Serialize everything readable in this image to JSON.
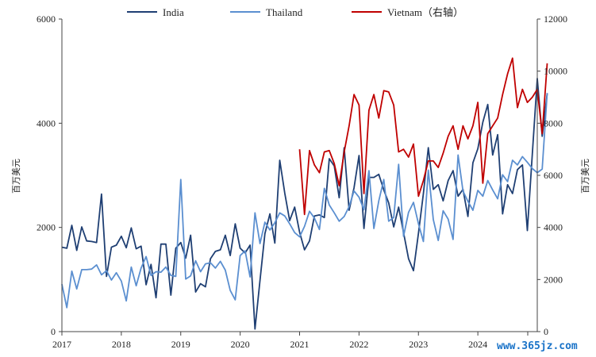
{
  "chart_data": {
    "type": "line",
    "x_ticks": [
      "2017",
      "2018",
      "2019",
      "2020",
      "2021",
      "2022",
      "2023",
      "2024"
    ],
    "y_left": {
      "label": "百万美元",
      "ticks": [
        "0",
        "2000",
        "4000",
        "6000"
      ],
      "range": [
        0,
        6000
      ]
    },
    "y_right": {
      "label": "百万美元",
      "ticks": [
        "0",
        "2000",
        "4000",
        "6000",
        "8000",
        "10000",
        "12000"
      ],
      "range": [
        0,
        12000
      ]
    },
    "x_range": [
      "2017-01",
      "2024-12"
    ],
    "colors": {
      "India": "#1f3f73",
      "Thailand": "#5b8fd0",
      "Vietnam": "#c00000"
    },
    "series": [
      {
        "name": "India",
        "axis": "left",
        "start": "2017-01",
        "values": [
          1620,
          1600,
          2040,
          1560,
          2010,
          1740,
          1730,
          1710,
          2640,
          1060,
          1620,
          1660,
          1830,
          1610,
          1990,
          1590,
          1640,
          900,
          1290,
          650,
          1680,
          1680,
          700,
          1600,
          1710,
          1410,
          1850,
          760,
          920,
          860,
          1400,
          1540,
          1570,
          1850,
          1460,
          2070,
          1600,
          1510,
          1660,
          50,
          980,
          1880,
          2260,
          1700,
          3290,
          2660,
          2130,
          2390,
          1910,
          1570,
          1740,
          2220,
          2240,
          2190,
          3320,
          3180,
          2570,
          3530,
          2330,
          2760,
          3380,
          1980,
          2960,
          2960,
          3020,
          2720,
          2470,
          2010,
          2390,
          1900,
          1400,
          1170,
          1890,
          2650,
          3530,
          2730,
          2820,
          2510,
          2900,
          3090,
          2600,
          2730,
          2210,
          3240,
          3510,
          4020,
          4360,
          3390,
          3780,
          2260,
          2820,
          2650,
          3110,
          3200,
          1940,
          3420,
          4860,
          3750,
          4570
        ]
      },
      {
        "name": "Thailand",
        "axis": "left",
        "start": "2017-01",
        "values": [
          910,
          460,
          1160,
          820,
          1190,
          1190,
          1200,
          1280,
          1090,
          1170,
          990,
          1130,
          970,
          590,
          1240,
          880,
          1220,
          1440,
          1080,
          1150,
          1140,
          1240,
          1080,
          1060,
          2920,
          1010,
          1070,
          1360,
          1150,
          1300,
          1320,
          1220,
          1350,
          1180,
          790,
          610,
          1460,
          1550,
          1050,
          2280,
          1690,
          2100,
          1950,
          2090,
          2280,
          2220,
          2070,
          1900,
          1820,
          2020,
          2310,
          2180,
          1960,
          2750,
          2430,
          2280,
          2120,
          2210,
          2400,
          2700,
          2580,
          2340,
          3090,
          1980,
          2510,
          2920,
          2120,
          2190,
          3210,
          1830,
          2290,
          2480,
          2070,
          1730,
          3100,
          2150,
          1750,
          2320,
          2160,
          1770,
          3390,
          2700,
          2500,
          2330,
          2710,
          2600,
          2900,
          2720,
          2550,
          3010,
          2880,
          3290,
          3200,
          3360,
          3250,
          3130,
          3050,
          3120,
          4580
        ]
      },
      {
        "name": "Vietnam（右轴）",
        "axis": "right",
        "start": "2021-01",
        "values": [
          7000,
          4500,
          6950,
          6400,
          6100,
          6900,
          6950,
          6450,
          5600,
          6900,
          7900,
          9100,
          8700,
          5300,
          8500,
          9100,
          8200,
          9250,
          9200,
          8700,
          6900,
          7000,
          6700,
          7200,
          5200,
          5800,
          6550,
          6550,
          6300,
          6850,
          7500,
          7900,
          7000,
          7900,
          7400,
          7900,
          8800,
          5700,
          7600,
          7900,
          8200,
          9100,
          9900,
          10500,
          8600,
          9300,
          8800,
          9000,
          9300,
          7600,
          10300
        ]
      }
    ]
  },
  "watermark": {
    "text": "www.365jz.com"
  }
}
